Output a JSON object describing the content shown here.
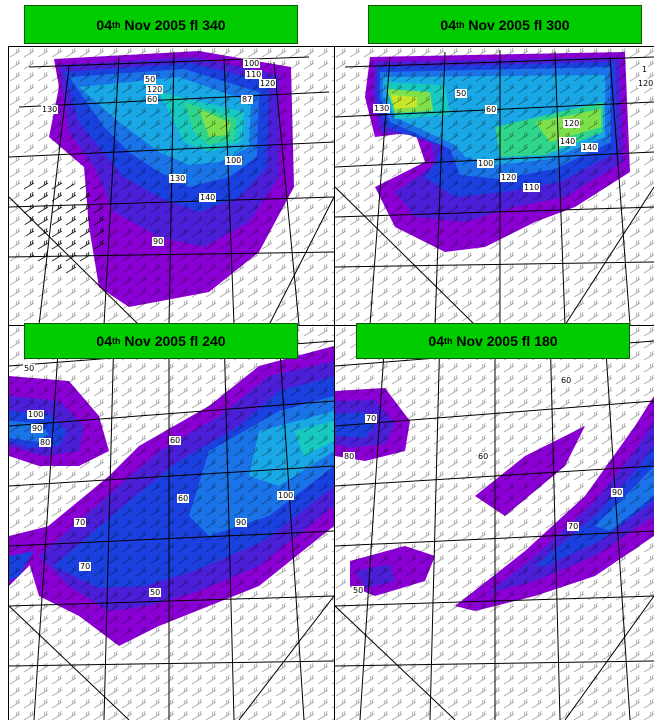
{
  "panels": [
    {
      "title": {
        "day": "04",
        "ordinal": "th",
        "rest": "Nov 2005 fl 340"
      },
      "labels": [
        "100",
        "110",
        "120",
        "130",
        "120",
        "50",
        "60",
        "87",
        "100",
        "130",
        "140",
        "90"
      ]
    },
    {
      "title": {
        "day": "04",
        "ordinal": "th",
        "rest": "Nov 2005 fl 300"
      },
      "labels": [
        "1",
        "120",
        "50",
        "60",
        "130",
        "120",
        "140",
        "100",
        "120",
        "110",
        "140"
      ]
    },
    {
      "title": {
        "day": "04",
        "ordinal": "th",
        "rest": "Nov 2005 fl 240"
      },
      "labels": [
        "50",
        "100",
        "90",
        "80",
        "70",
        "60",
        "100",
        "70",
        "60",
        "50",
        "90"
      ]
    },
    {
      "title": {
        "day": "04",
        "ordinal": "th",
        "rest": "Nov 2005 fl 180"
      },
      "labels": [
        "60",
        "70",
        "80",
        "60",
        "50",
        "90",
        "70"
      ]
    }
  ],
  "colors": {
    "title_bg": "#00cc00",
    "contour_50": "#8a00d4",
    "contour_60": "#4b1fd8",
    "contour_70": "#1a40e0",
    "contour_80": "#1b73e8",
    "contour_90": "#19a7e6",
    "contour_100": "#18c9c0",
    "contour_110": "#2fd58a",
    "contour_120": "#7ee04a",
    "contour_130": "#c8e62a"
  }
}
